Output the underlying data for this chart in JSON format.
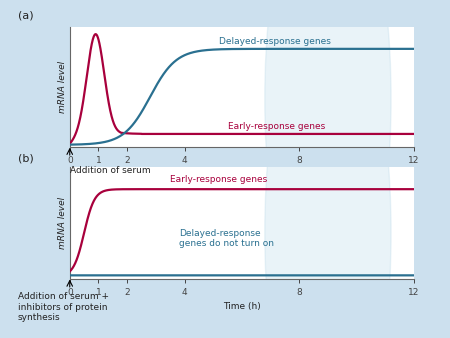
{
  "bg_color": "#cce0ee",
  "panel_bg": "#ffffff",
  "early_color": "#a8003c",
  "delayed_color": "#2a7090",
  "axis_color": "#666666",
  "tick_color": "#444444",
  "label_color": "#222222",
  "xticks": [
    0,
    1,
    2,
    4,
    8,
    12
  ],
  "xlabel": "Time (h)",
  "ylabel": "mRNA level",
  "panel_a_label": "(a)",
  "panel_b_label": "(b)",
  "panel_a_annotation": "Addition of serum",
  "panel_b_annotation": "Addition of serum +\ninhibitors of protein\nsynthesis",
  "panel_a_early_label": "Early-response genes",
  "panel_a_delayed_label": "Delayed-response genes",
  "panel_b_early_label": "Early-response genes",
  "panel_b_delayed_label": "Delayed-response\ngenes do not turn on",
  "font_size_labels": 6.5,
  "font_size_axis": 6.5,
  "font_size_panel": 8
}
